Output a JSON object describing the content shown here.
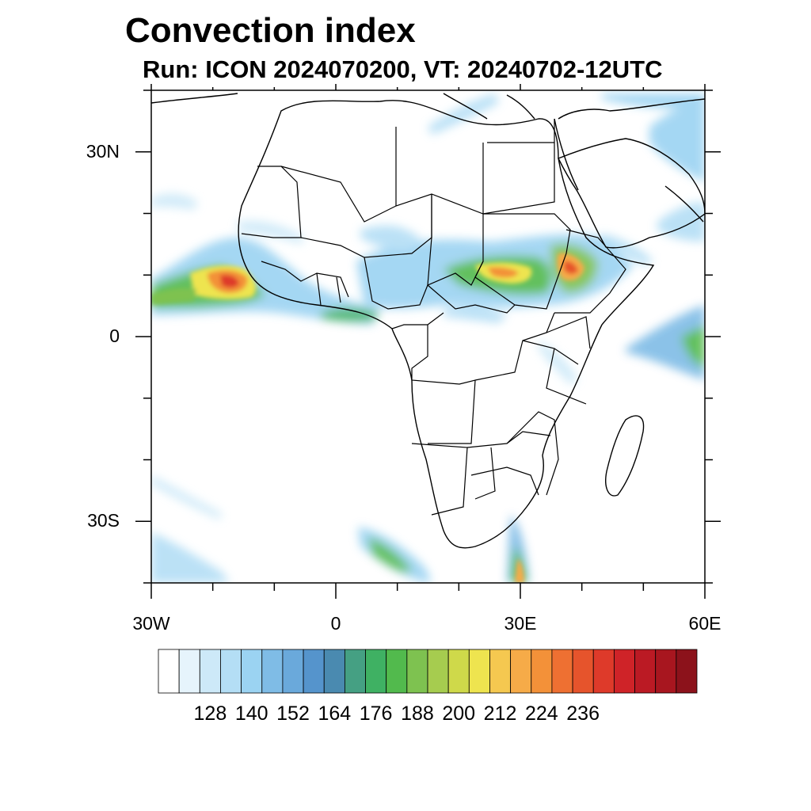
{
  "title": "Convection index",
  "subtitle": "Run: ICON 2024070200,  VT: 20240702-12UTC",
  "map": {
    "lon_range": [
      -30,
      60
    ],
    "lat_range": [
      -40,
      40
    ],
    "lat_ticks": [
      {
        "lat": 30,
        "label": "30N"
      },
      {
        "lat": 0,
        "label": "0"
      },
      {
        "lat": -30,
        "label": "30S"
      }
    ],
    "lon_ticks": [
      {
        "lon": -30,
        "label": "30W"
      },
      {
        "lon": 0,
        "label": "0"
      },
      {
        "lon": 30,
        "label": "30E"
      },
      {
        "lon": 60,
        "label": "60E"
      }
    ]
  },
  "colorbar": {
    "colors": [
      "#ffffff",
      "#e6f4fc",
      "#cde9f8",
      "#b4def5",
      "#9bd3f2",
      "#7fbce6",
      "#6aa9db",
      "#5594cc",
      "#4a8ab0",
      "#45a083",
      "#3fb163",
      "#52ba4d",
      "#7ec250",
      "#a6cc4f",
      "#cfd94a",
      "#eee44f",
      "#f5c850",
      "#f6ab48",
      "#f39139",
      "#ee7032",
      "#e6542c",
      "#de3a2a",
      "#cf2328",
      "#bb1a24",
      "#a8161f",
      "#8c121b"
    ],
    "labels": [
      "128",
      "140",
      "152",
      "164",
      "176",
      "188",
      "200",
      "212",
      "224",
      "236"
    ]
  }
}
